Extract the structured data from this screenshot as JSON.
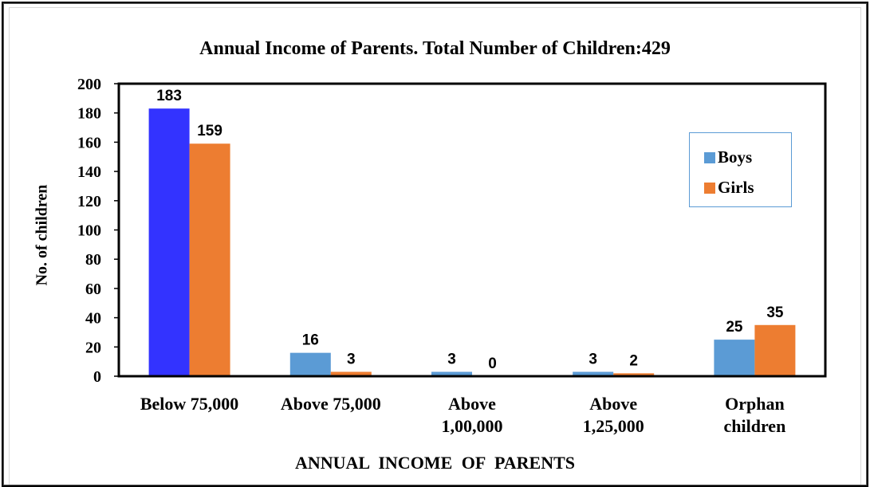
{
  "chart_data": {
    "type": "bar",
    "title": "Annual  Income of  Parents. Total  Number of Children:429",
    "xlabel": "ANNUAL  INCOME  OF   PARENTS",
    "ylabel": "No. of children",
    "ylim": [
      0,
      200
    ],
    "yticks": [
      0,
      20,
      40,
      60,
      80,
      100,
      120,
      140,
      160,
      180,
      200
    ],
    "categories": [
      [
        "Below 75,000"
      ],
      [
        "Above 75,000"
      ],
      [
        "Above",
        "1,00,000"
      ],
      [
        "Above",
        "1,25,000"
      ],
      [
        "Orphan",
        "children"
      ]
    ],
    "series": [
      {
        "name": "Boys",
        "color": "#5b9bd5",
        "values": [
          183,
          16,
          3,
          3,
          25
        ],
        "labels": [
          "183",
          "16",
          "3",
          "3",
          "25"
        ]
      },
      {
        "name": "Girls",
        "color": "#ed7d31",
        "values": [
          159,
          3,
          0,
          2,
          35
        ],
        "labels": [
          "159",
          "3",
          "0",
          "2",
          "35"
        ]
      }
    ],
    "highlight": {
      "series": 0,
      "index": 0,
      "color": "#3333ff"
    },
    "legend_position": "right",
    "grid": false
  }
}
